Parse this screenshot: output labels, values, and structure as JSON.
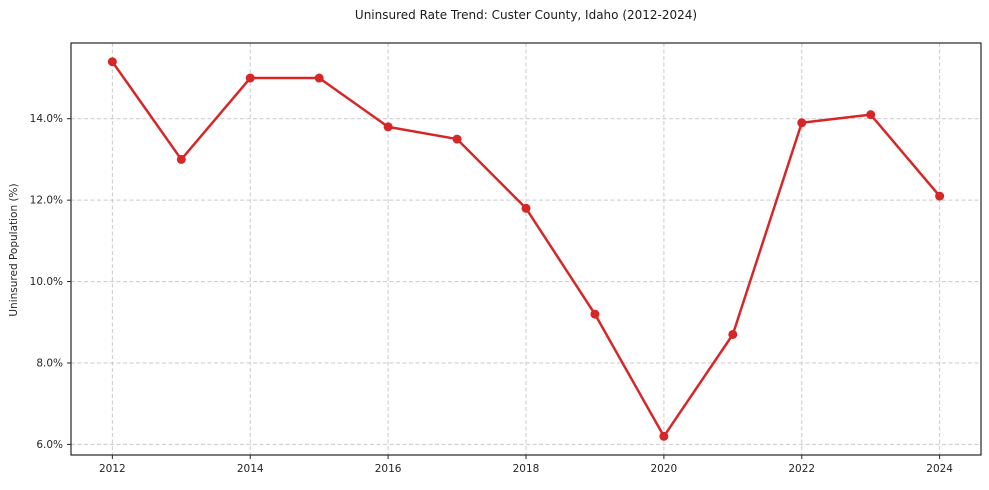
{
  "chart_data": {
    "type": "line",
    "title": "Uninsured Rate Trend: Custer County, Idaho (2012-2024)",
    "xlabel": "",
    "ylabel": "Uninsured Population (%)",
    "x": [
      2012,
      2013,
      2014,
      2015,
      2016,
      2017,
      2018,
      2019,
      2020,
      2021,
      2022,
      2023,
      2024
    ],
    "values": [
      15.4,
      13.0,
      15.0,
      15.0,
      13.8,
      13.5,
      11.8,
      9.2,
      6.2,
      8.7,
      13.9,
      14.1,
      12.1
    ],
    "x_ticks": [
      2012,
      2014,
      2016,
      2018,
      2020,
      2022,
      2024
    ],
    "x_tick_labels": [
      "2012",
      "2014",
      "2016",
      "2018",
      "2020",
      "2022",
      "2024"
    ],
    "y_ticks": [
      6.0,
      8.0,
      10.0,
      12.0,
      14.0
    ],
    "y_tick_labels": [
      "6.0%",
      "8.0%",
      "10.0%",
      "12.0%",
      "14.0%"
    ],
    "xlim": [
      2011.4,
      2024.6
    ],
    "ylim": [
      5.74,
      15.86
    ],
    "grid": true,
    "legend": false,
    "line_color": "#d62728",
    "marker": "circle"
  },
  "colors": {
    "background": "#ffffff",
    "gridline": "#c9c9c9",
    "spine": "#262626",
    "tick_text": "#262626",
    "series": "#d62728"
  }
}
